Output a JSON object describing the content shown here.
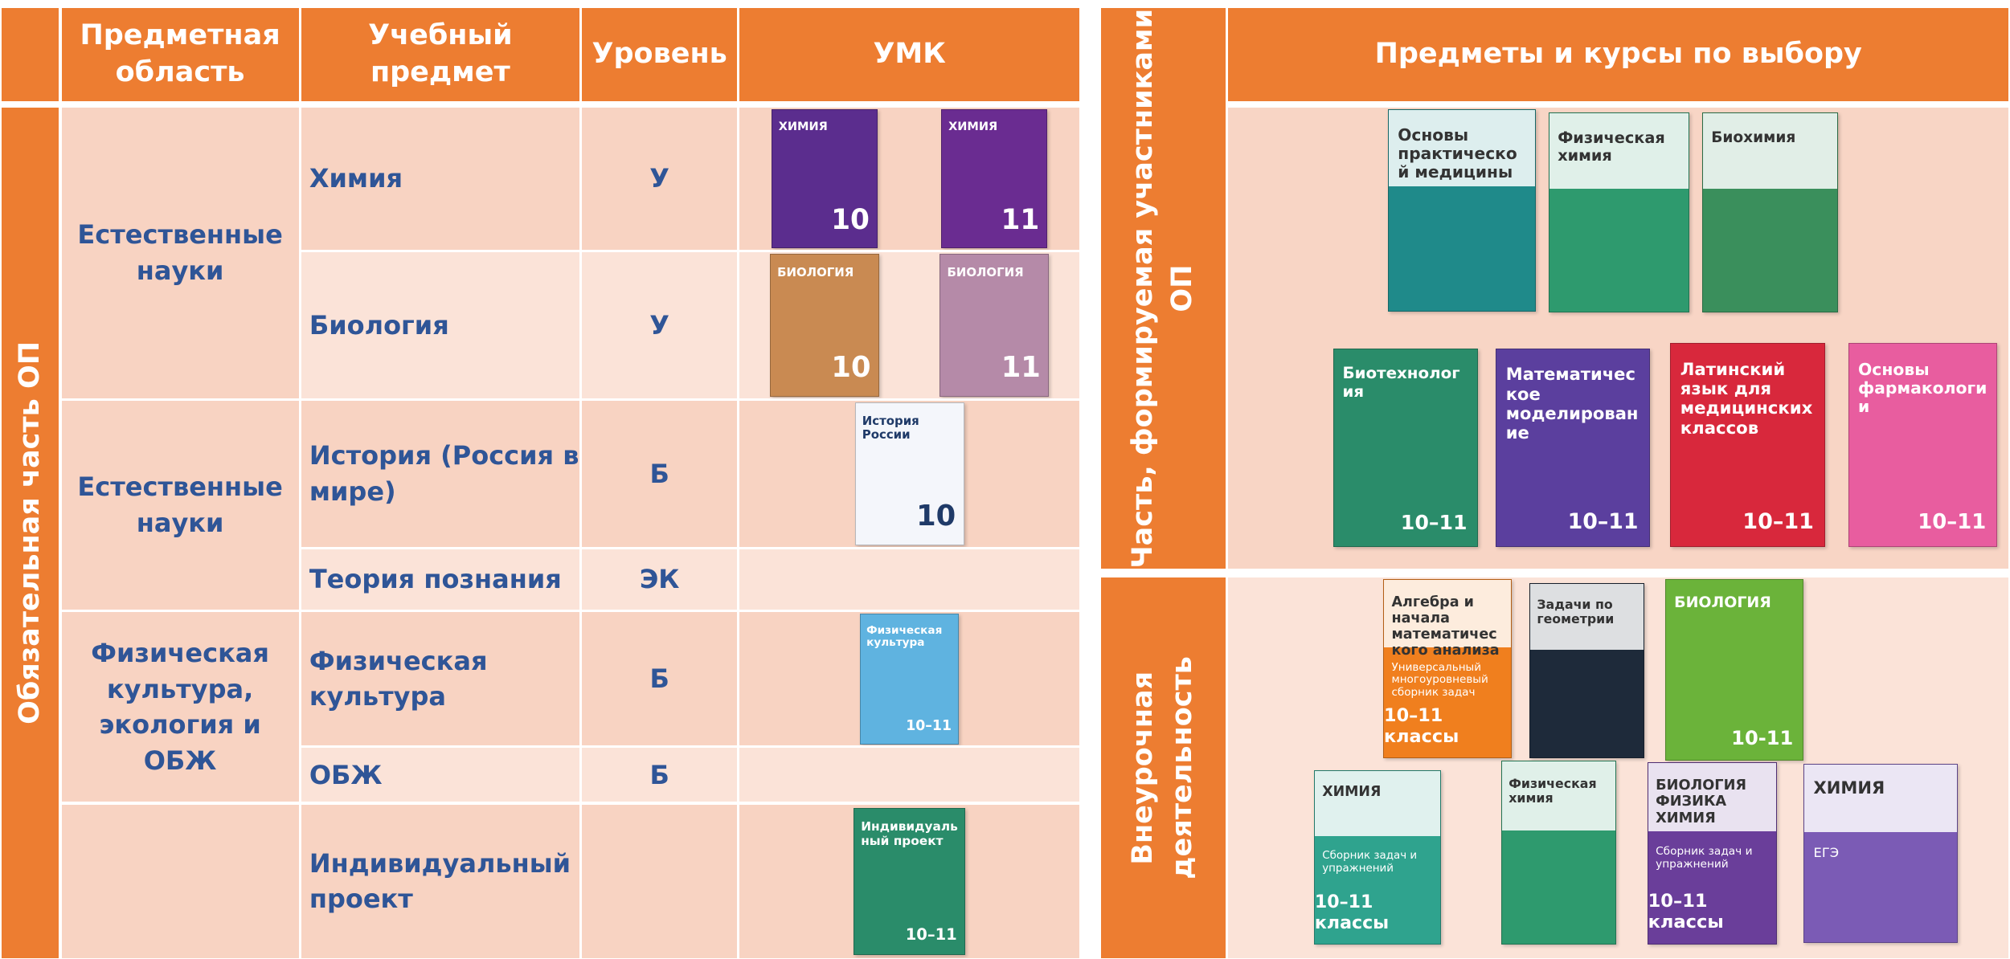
{
  "table": {
    "section_label": "Обязательная часть ОП",
    "headers": [
      "Предметная область",
      "Учебный предмет",
      "Уровень",
      "УМК"
    ],
    "domains": [
      {
        "name": "Естественные науки",
        "subjects": [
          {
            "name": "Химия",
            "level": "У",
            "books": [
              {
                "title": "ХИМИЯ",
                "grade": "10",
                "color": "#5b2d8e"
              },
              {
                "title": "ХИМИЯ",
                "grade": "11",
                "color": "#6a2c91"
              }
            ]
          },
          {
            "name": "Биология",
            "level": "У",
            "books": [
              {
                "title": "БИОЛОГИЯ",
                "grade": "10",
                "color": "#c98a52"
              },
              {
                "title": "БИОЛОГИЯ",
                "grade": "11",
                "color": "#b58aa8"
              }
            ]
          }
        ]
      },
      {
        "name": "Естественные науки",
        "subjects": [
          {
            "name": "История (Россия в мире)",
            "level": "Б",
            "books": [
              {
                "title": "История России",
                "grade": "10",
                "color": "#f4f6fb",
                "text_color": "#1f3a68"
              }
            ]
          },
          {
            "name": "Теория познания",
            "level": "ЭК",
            "books": []
          }
        ]
      },
      {
        "name": "Физическая культура, экология и ОБЖ",
        "subjects": [
          {
            "name": "Физическая культура",
            "level": "Б",
            "books": [
              {
                "title": "Физическая культура",
                "grade": "10–11",
                "color": "#5fb3e0"
              }
            ]
          },
          {
            "name": "ОБЖ",
            "level": "Б",
            "books": []
          }
        ]
      },
      {
        "name": null,
        "subjects": [
          {
            "name": "Индивидуальный проект",
            "level": null,
            "books": [
              {
                "title": "Индивидуальный проект",
                "grade": "10–11",
                "color": "#2a8c6a"
              }
            ]
          }
        ]
      }
    ]
  },
  "electives": {
    "header": "Предметы и курсы по выбору",
    "sections": [
      {
        "label": "Часть, формируемая участниками ОП",
        "books": [
          {
            "title": "Основы практической медицины",
            "color": "#1f8a8a"
          },
          {
            "title": "Физическая химия",
            "color": "#2e9a6e"
          },
          {
            "title": "Биохимия",
            "color": "#3a8f5c"
          },
          {
            "title": "Биотехнология",
            "grade": "10–11",
            "color": "#2a8c6a"
          },
          {
            "title": "Математическое моделирование",
            "grade": "10–11",
            "color": "#5b3f9e"
          },
          {
            "title": "Латинский язык для медицинских классов",
            "grade": "10–11",
            "color": "#d8283c"
          },
          {
            "title": "Основы фармакологии",
            "grade": "10–11",
            "color": "#e85d9f"
          }
        ]
      },
      {
        "label": "Внеурочная деятельность",
        "books": [
          {
            "title": "Алгебра и начала математического анализа",
            "subtitle": "Универсальный многоуровневый сборник задач",
            "grade": "10–11 классы",
            "color": "#f07f1e"
          },
          {
            "title": "Задачи по геометрии",
            "color": "#1e2a3a"
          },
          {
            "title": "БИОЛОГИЯ",
            "grade": "10-11",
            "color": "#6bb33a"
          },
          {
            "title": "ХИМИЯ",
            "subtitle": "Сборник задач и упражнений",
            "grade": "10–11 классы",
            "color": "#2fa38e"
          },
          {
            "title": "Физическая химия",
            "color": "#2e9a6e"
          },
          {
            "title": "БИОЛОГИЯ ФИЗИКА ХИМИЯ",
            "subtitle": "Сборник задач и упражнений",
            "grade": "10–11 классы",
            "color": "#6a3e9a"
          },
          {
            "title": "ХИМИЯ",
            "subtitle": "ЕГЭ",
            "color": "#7b5bb5"
          }
        ]
      }
    ]
  }
}
